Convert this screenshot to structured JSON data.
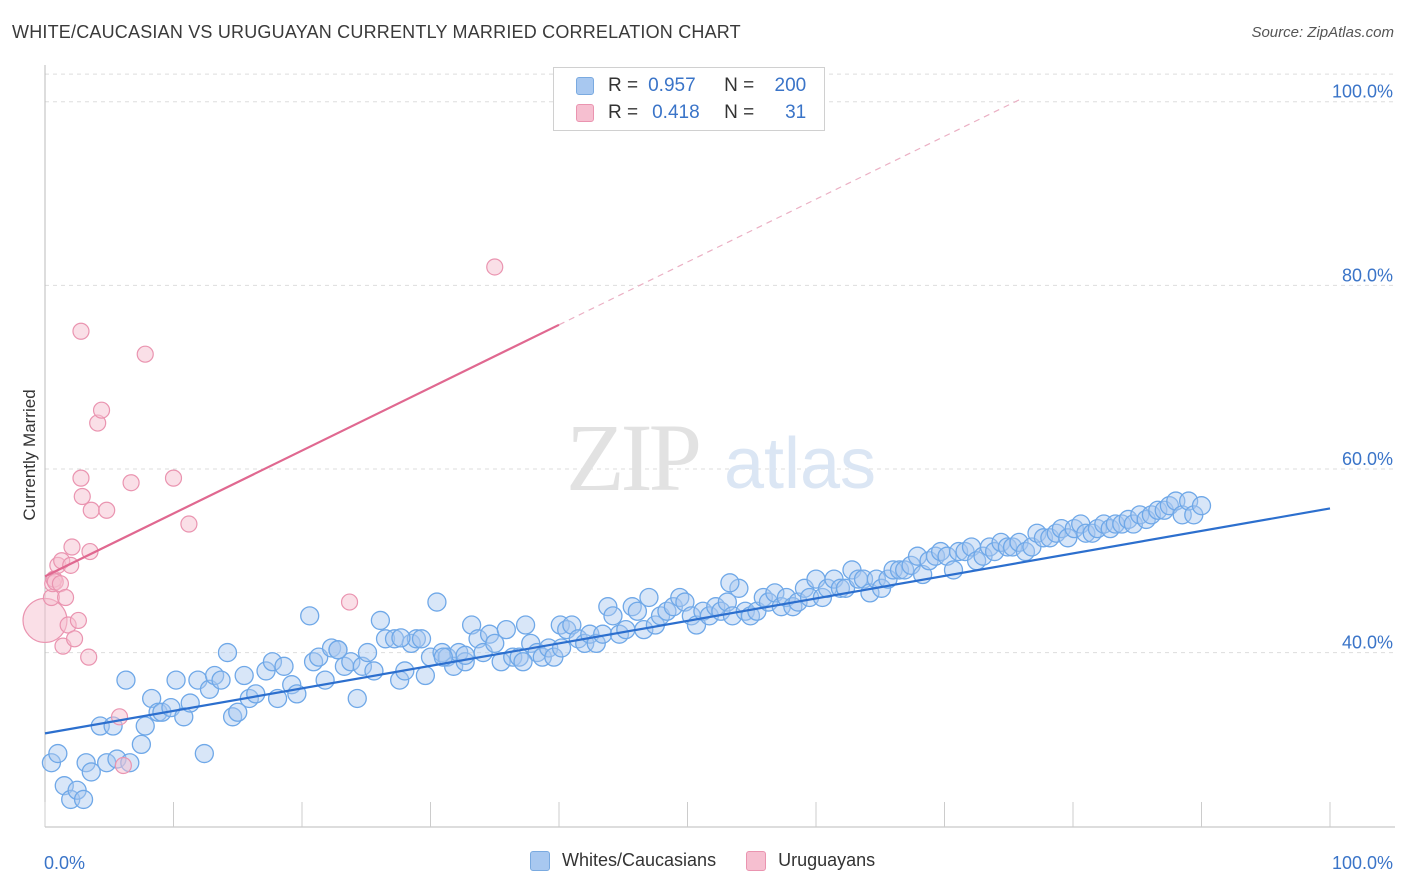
{
  "title": "WHITE/CAUCASIAN VS URUGUAYAN CURRENTLY MARRIED CORRELATION CHART",
  "source": "Source: ZipAtlas.com",
  "watermark": {
    "zip": "ZIP",
    "atlas": "atlas"
  },
  "legend_stats": [
    {
      "r_label": "R =",
      "r_value": "0.957",
      "n_label": "N =",
      "n_value": "200",
      "color": "#a8c8f0",
      "border": "#7aaae0"
    },
    {
      "r_label": "R =",
      "r_value": "0.418",
      "n_label": "N =",
      "n_value": "31",
      "color": "#f6bfd0",
      "border": "#ea94b0"
    }
  ],
  "chart_data": {
    "type": "scatter",
    "title": "WHITE/CAUCASIAN VS URUGUAYAN CURRENTLY MARRIED CORRELATION CHART",
    "xlabel": "",
    "ylabel": "Currently Married",
    "xlim": [
      0,
      100
    ],
    "ylim": [
      21,
      104
    ],
    "x_tick_labels": [
      "0.0%",
      "100.0%"
    ],
    "y_ticks": [
      40,
      60,
      80,
      100
    ],
    "y_tick_labels": [
      "40.0%",
      "60.0%",
      "80.0%",
      "100.0%"
    ],
    "grid": true,
    "legend_position": "bottom",
    "series": [
      {
        "name": "Whites/Caucasians",
        "color": "#6fa8e8",
        "fill": "#a8c8f0",
        "trend": {
          "x": [
            0,
            100
          ],
          "y": [
            31.2,
            55.7
          ]
        },
        "points": [
          [
            0.5,
            28
          ],
          [
            1,
            29
          ],
          [
            1.5,
            25.5
          ],
          [
            2,
            24
          ],
          [
            2.5,
            25
          ],
          [
            3,
            24
          ],
          [
            3.2,
            28
          ],
          [
            3.6,
            27
          ],
          [
            4.3,
            32
          ],
          [
            4.8,
            28
          ],
          [
            5.3,
            32
          ],
          [
            5.6,
            28.4
          ],
          [
            6.3,
            37
          ],
          [
            6.6,
            28
          ],
          [
            7.5,
            30
          ],
          [
            7.8,
            32
          ],
          [
            8.3,
            35
          ],
          [
            8.8,
            33.5
          ],
          [
            9.1,
            33.5
          ],
          [
            9.8,
            34
          ],
          [
            10.2,
            37
          ],
          [
            10.8,
            33
          ],
          [
            11.3,
            34.5
          ],
          [
            11.9,
            37
          ],
          [
            12.4,
            29
          ],
          [
            12.8,
            36
          ],
          [
            13.2,
            37.5
          ],
          [
            13.7,
            37
          ],
          [
            14.2,
            40
          ],
          [
            14.6,
            33
          ],
          [
            15,
            33.5
          ],
          [
            15.5,
            37.5
          ],
          [
            15.9,
            35
          ],
          [
            16.4,
            35.5
          ],
          [
            17.2,
            38
          ],
          [
            17.7,
            39
          ],
          [
            18.1,
            35
          ],
          [
            18.6,
            38.5
          ],
          [
            19.2,
            36.5
          ],
          [
            19.6,
            35.5
          ],
          [
            20.6,
            44
          ],
          [
            20.9,
            39
          ],
          [
            21.3,
            39.5
          ],
          [
            21.8,
            37
          ],
          [
            22.3,
            40.5
          ],
          [
            22.8,
            40.3
          ],
          [
            23.3,
            38.5
          ],
          [
            23.8,
            39
          ],
          [
            24.3,
            35
          ],
          [
            24.7,
            38.5
          ],
          [
            25.1,
            40
          ],
          [
            25.6,
            38
          ],
          [
            26.1,
            43.5
          ],
          [
            26.5,
            41.5
          ],
          [
            27.2,
            41.5
          ],
          [
            27.6,
            37
          ],
          [
            28,
            38
          ],
          [
            28.5,
            41
          ],
          [
            28.9,
            41.5
          ],
          [
            29.3,
            41.5
          ],
          [
            30,
            39.5
          ],
          [
            30.5,
            45.5
          ],
          [
            30.9,
            40
          ],
          [
            31.3,
            39.5
          ],
          [
            31.8,
            38.5
          ],
          [
            32.2,
            40
          ],
          [
            32.7,
            39
          ],
          [
            33.2,
            43
          ],
          [
            33.7,
            41.5
          ],
          [
            34.1,
            40
          ],
          [
            34.6,
            42
          ],
          [
            35,
            41
          ],
          [
            35.5,
            39
          ],
          [
            35.9,
            42.5
          ],
          [
            36.4,
            39.5
          ],
          [
            36.9,
            39.5
          ],
          [
            37.4,
            43
          ],
          [
            37.8,
            41
          ],
          [
            38.3,
            40
          ],
          [
            38.7,
            39.5
          ],
          [
            39.2,
            40.5
          ],
          [
            39.6,
            39.5
          ],
          [
            40.1,
            43
          ],
          [
            40.6,
            42.5
          ],
          [
            41,
            43
          ],
          [
            41.5,
            41.5
          ],
          [
            42,
            41
          ],
          [
            42.4,
            42
          ],
          [
            42.9,
            41
          ],
          [
            43.4,
            42
          ],
          [
            43.8,
            45
          ],
          [
            44.2,
            44
          ],
          [
            44.7,
            42
          ],
          [
            45.2,
            42.5
          ],
          [
            45.7,
            45
          ],
          [
            46.1,
            44.5
          ],
          [
            46.6,
            42.5
          ],
          [
            47,
            46
          ],
          [
            47.5,
            43
          ],
          [
            47.9,
            44
          ],
          [
            48.4,
            44.5
          ],
          [
            48.9,
            45
          ],
          [
            49.4,
            46
          ],
          [
            49.8,
            45.5
          ],
          [
            50.3,
            44
          ],
          [
            50.7,
            43
          ],
          [
            51.2,
            44.5
          ],
          [
            51.7,
            44
          ],
          [
            52.2,
            45
          ],
          [
            52.6,
            44.5
          ],
          [
            53.1,
            45.5
          ],
          [
            53.5,
            44
          ],
          [
            54,
            47
          ],
          [
            54.5,
            44.5
          ],
          [
            54.9,
            44
          ],
          [
            55.4,
            44.5
          ],
          [
            55.9,
            46
          ],
          [
            56.3,
            45.5
          ],
          [
            56.8,
            46.5
          ],
          [
            57.3,
            45
          ],
          [
            57.7,
            46
          ],
          [
            58.2,
            45
          ],
          [
            58.6,
            45.5
          ],
          [
            59.1,
            47
          ],
          [
            59.5,
            46
          ],
          [
            60,
            48
          ],
          [
            60.5,
            46
          ],
          [
            60.9,
            47
          ],
          [
            61.4,
            48
          ],
          [
            61.9,
            47
          ],
          [
            62.3,
            47
          ],
          [
            62.8,
            49
          ],
          [
            63.3,
            48
          ],
          [
            63.7,
            48
          ],
          [
            64.2,
            46.5
          ],
          [
            64.7,
            48
          ],
          [
            65.1,
            47
          ],
          [
            65.6,
            48
          ],
          [
            66,
            49
          ],
          [
            66.5,
            49
          ],
          [
            66.9,
            49
          ],
          [
            67.4,
            49.5
          ],
          [
            67.9,
            50.5
          ],
          [
            68.3,
            48.5
          ],
          [
            68.8,
            50
          ],
          [
            69.3,
            50.5
          ],
          [
            69.7,
            51
          ],
          [
            70.2,
            50.5
          ],
          [
            70.7,
            49
          ],
          [
            71.1,
            51
          ],
          [
            71.6,
            51
          ],
          [
            72.1,
            51.5
          ],
          [
            72.5,
            50
          ],
          [
            73,
            50.5
          ],
          [
            73.5,
            51.5
          ],
          [
            73.9,
            51
          ],
          [
            74.4,
            52
          ],
          [
            74.9,
            51.5
          ],
          [
            75.3,
            51.5
          ],
          [
            75.8,
            52
          ],
          [
            76.3,
            51
          ],
          [
            76.8,
            51.5
          ],
          [
            77.2,
            53
          ],
          [
            77.7,
            52.5
          ],
          [
            78.2,
            52.5
          ],
          [
            78.7,
            53
          ],
          [
            79.1,
            53.5
          ],
          [
            79.6,
            52.5
          ],
          [
            80.1,
            53.5
          ],
          [
            80.6,
            54
          ],
          [
            81,
            53
          ],
          [
            81.5,
            53
          ],
          [
            81.9,
            53.5
          ],
          [
            82.4,
            54
          ],
          [
            82.9,
            53.5
          ],
          [
            83.3,
            54
          ],
          [
            83.8,
            54
          ],
          [
            84.3,
            54.5
          ],
          [
            84.7,
            54
          ],
          [
            85.2,
            55
          ],
          [
            85.7,
            54.5
          ],
          [
            86.1,
            55
          ],
          [
            86.6,
            55.5
          ],
          [
            87.1,
            55.5
          ],
          [
            87.5,
            56
          ],
          [
            88,
            56.5
          ],
          [
            88.5,
            55
          ],
          [
            89,
            56.5
          ],
          [
            89.4,
            55
          ],
          [
            90,
            56
          ],
          [
            40.2,
            40.5
          ],
          [
            32.7,
            39.7
          ],
          [
            37.2,
            39
          ],
          [
            29.6,
            37.5
          ],
          [
            22.8,
            40.3
          ],
          [
            27.7,
            41.6
          ],
          [
            53.3,
            47.6
          ],
          [
            31,
            39.5
          ]
        ]
      },
      {
        "name": "Uruguayans",
        "color": "#ea94b0",
        "fill": "#f6bfd0",
        "trend": {
          "x": [
            0,
            40
          ],
          "y": [
            48.3,
            75.7
          ]
        },
        "trend_extension": {
          "x": [
            40,
            75.8
          ],
          "y": [
            75.7,
            100.2
          ]
        },
        "points": [
          [
            0,
            43.5
          ],
          [
            0.5,
            46
          ],
          [
            0.6,
            47.5
          ],
          [
            0.7,
            48
          ],
          [
            0.8,
            47.7
          ],
          [
            1,
            49.5
          ],
          [
            1.2,
            47.5
          ],
          [
            1.3,
            50
          ],
          [
            1.4,
            40.7
          ],
          [
            1.6,
            46
          ],
          [
            1.8,
            43
          ],
          [
            2,
            49.5
          ],
          [
            2.1,
            51.5
          ],
          [
            2.3,
            41.5
          ],
          [
            2.6,
            43.5
          ],
          [
            2.8,
            59
          ],
          [
            2.9,
            57
          ],
          [
            2.8,
            75
          ],
          [
            3.4,
            39.5
          ],
          [
            3.5,
            51
          ],
          [
            3.6,
            55.5
          ],
          [
            4.1,
            65
          ],
          [
            4.4,
            66.4
          ],
          [
            4.8,
            55.5
          ],
          [
            5.8,
            33
          ],
          [
            6.1,
            27.7
          ],
          [
            6.7,
            58.5
          ],
          [
            7.8,
            72.5
          ],
          [
            10,
            59
          ],
          [
            11.2,
            54
          ],
          [
            23.7,
            45.5
          ],
          [
            35,
            82
          ]
        ]
      }
    ]
  }
}
